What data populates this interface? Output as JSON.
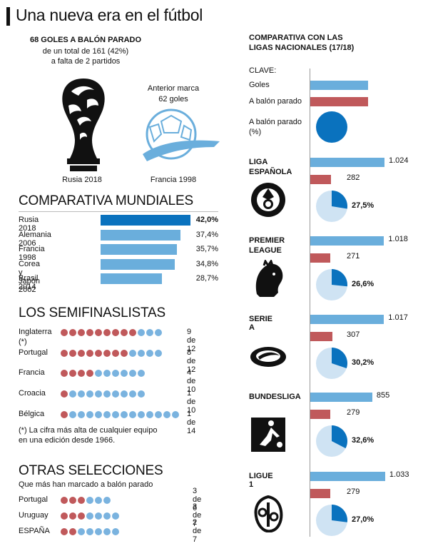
{
  "header": {
    "title": "Una nueva era en el fútbol"
  },
  "intro": {
    "headline": "68 GOLES A BALÓN PARADO",
    "line2": "de un total de 161 (42%)",
    "line3": "a falta de 2 partidos",
    "prev_line1": "Anterior marca",
    "prev_line2": "62 goles",
    "label_left": "Rusia 2018",
    "label_right": "Francia 1998"
  },
  "mundiales": {
    "title": "COMPARATIVA MUNDIALES",
    "rows": [
      {
        "name": "Rusia 2018",
        "pct": 42.0,
        "label": "42,0%",
        "highlight": true
      },
      {
        "name": "Alemania 2006",
        "pct": 37.4,
        "label": "37,4%",
        "highlight": false
      },
      {
        "name": "Francia 1998",
        "pct": 35.7,
        "label": "35,7%",
        "highlight": false
      },
      {
        "name": "Corea y Japón 2002",
        "pct": 34.8,
        "label": "34,8%",
        "highlight": false
      },
      {
        "name": "Brasil 2014",
        "pct": 28.7,
        "label": "28,7%",
        "highlight": false
      }
    ]
  },
  "semis": {
    "title": "LOS SEMIFINASLISTAS",
    "rows": [
      {
        "name": "Inglaterra",
        "note": "(*)",
        "made": 9,
        "total": 12,
        "label": "9 de 12"
      },
      {
        "name": "Portugal",
        "note": "",
        "made": 8,
        "total": 12,
        "label": "8 de 12"
      },
      {
        "name": "Francia",
        "note": "",
        "made": 4,
        "total": 10,
        "label": "4 de 10"
      },
      {
        "name": "Croacia",
        "note": "",
        "made": 1,
        "total": 10,
        "label": "1 de 10"
      },
      {
        "name": "Bélgica",
        "note": "",
        "made": 1,
        "total": 14,
        "label": "1 de 14"
      }
    ],
    "footnote1": "(*) La cifra más alta de cualquier equipo",
    "footnote2": "en una edición desde 1966."
  },
  "otras": {
    "title": "OTRAS SELECCIONES",
    "subtitle": "Que más han marcado a balón parado",
    "rows": [
      {
        "name": "Portugal",
        "made": 3,
        "total": 6,
        "label": "3 de 6"
      },
      {
        "name": "Uruguay",
        "made": 3,
        "total": 7,
        "label": "3 de 7"
      },
      {
        "name": "ESPAÑA",
        "made": 2,
        "total": 7,
        "label": "2 de 7"
      }
    ]
  },
  "ligas": {
    "title1": "COMPARATIVA CON LAS",
    "title2": "LIGAS NACIONALES (17/18)",
    "key": {
      "title": "CLAVE:",
      "goles": "Goles",
      "balon": "A balón parado",
      "pct1": "A balón parado",
      "pct2": "(%)"
    },
    "rows": [
      {
        "name1": "LIGA",
        "name2": "ESPAÑOLA",
        "goles": 1024,
        "goles_label": "1.024",
        "balon": 282,
        "balon_label": "282",
        "pct": 27.5,
        "pct_label": "27,5%",
        "logo": "laliga-logo-icon"
      },
      {
        "name1": "PREMIER",
        "name2": "LEAGUE",
        "goles": 1018,
        "goles_label": "1.018",
        "balon": 271,
        "balon_label": "271",
        "pct": 26.6,
        "pct_label": "26,6%",
        "logo": "premier-lion-icon"
      },
      {
        "name1": "SERIE A",
        "name2": "",
        "goles": 1017,
        "goles_label": "1.017",
        "balon": 307,
        "balon_label": "307",
        "pct": 30.2,
        "pct_label": "30,2%",
        "logo": "serie-a-logo-icon"
      },
      {
        "name1": "BUNDESLIGA",
        "name2": "",
        "goles": 855,
        "goles_label": "855",
        "balon": 279,
        "balon_label": "279",
        "pct": 32.6,
        "pct_label": "32,6%",
        "logo": "bundesliga-logo-icon"
      },
      {
        "name1": "LIGUE 1",
        "name2": "",
        "goles": 1033,
        "goles_label": "1.033",
        "balon": 279,
        "balon_label": "279",
        "pct": 27.0,
        "pct_label": "27,0%",
        "logo": "ligue1-logo-icon"
      }
    ]
  },
  "colors": {
    "blue": "#6aaedc",
    "dark_blue": "#0a72be",
    "red": "#c0595b",
    "pie_light": "#cfe3f3"
  },
  "chart_data": [
    {
      "type": "bar",
      "categories": [
        "Rusia 2018",
        "Alemania 2006",
        "Francia 1998",
        "Corea y Japón 2002",
        "Brasil 2014"
      ],
      "values": [
        42.0,
        37.4,
        35.7,
        34.8,
        28.7
      ],
      "title": "COMPARATIVA MUNDIALES"
    },
    {
      "type": "bar",
      "categories": [
        "LIGA ESPAÑOLA",
        "PREMIER LEAGUE",
        "SERIE A",
        "BUNDESLIGA",
        "LIGUE 1"
      ],
      "series": [
        {
          "name": "Goles",
          "values": [
            1024,
            1018,
            1017,
            855,
            1033
          ]
        },
        {
          "name": "A balón parado",
          "values": [
            282,
            271,
            307,
            279,
            279
          ]
        }
      ],
      "title": "COMPARATIVA CON LAS LIGAS NACIONALES (17/18)"
    },
    {
      "type": "pie",
      "categories": [
        "LIGA ESPAÑOLA",
        "PREMIER LEAGUE",
        "SERIE A",
        "BUNDESLIGA",
        "LIGUE 1"
      ],
      "values": [
        27.5,
        26.6,
        30.2,
        32.6,
        27.0
      ]
    }
  ]
}
